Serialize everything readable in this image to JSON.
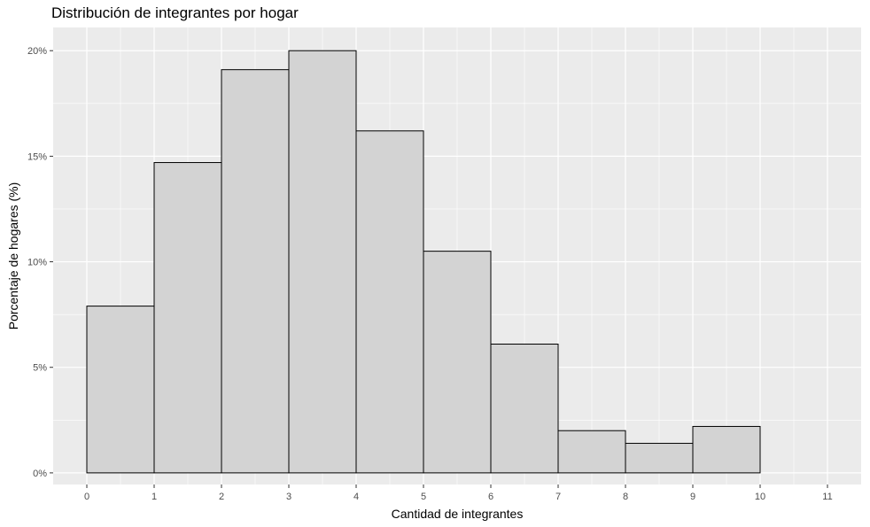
{
  "chart_data": {
    "type": "bar",
    "title": "Distribución de integrantes por hogar",
    "xlabel": "Cantidad de integrantes",
    "ylabel": "Porcentaje de hogares (%)",
    "bins": [
      {
        "x0": 0,
        "x1": 1,
        "value": 7.9
      },
      {
        "x0": 1,
        "x1": 2,
        "value": 14.7
      },
      {
        "x0": 2,
        "x1": 3,
        "value": 19.1
      },
      {
        "x0": 3,
        "x1": 4,
        "value": 20.0
      },
      {
        "x0": 4,
        "x1": 5,
        "value": 16.2
      },
      {
        "x0": 5,
        "x1": 6,
        "value": 10.5
      },
      {
        "x0": 6,
        "x1": 7,
        "value": 6.1
      },
      {
        "x0": 7,
        "x1": 8,
        "value": 2.0
      },
      {
        "x0": 8,
        "x1": 9,
        "value": 1.4
      },
      {
        "x0": 9,
        "x1": 10,
        "value": 2.2
      },
      {
        "x0": 10,
        "x1": 11,
        "value": 0.0
      }
    ],
    "x_ticks": [
      "0",
      "1",
      "2",
      "3",
      "4",
      "5",
      "6",
      "7",
      "8",
      "9",
      "10",
      "11"
    ],
    "y_ticks": [
      "0%",
      "5%",
      "10%",
      "15%",
      "20%"
    ],
    "xlim": [
      -0.5,
      11.5
    ],
    "ylim": [
      -0.55,
      21.1
    ],
    "grid": true,
    "colors": {
      "panel": "#ebebeb",
      "grid": "#ffffff",
      "bar_fill": "#d3d3d3",
      "bar_stroke": "#000000",
      "tick_text": "#4d4d4d"
    }
  }
}
